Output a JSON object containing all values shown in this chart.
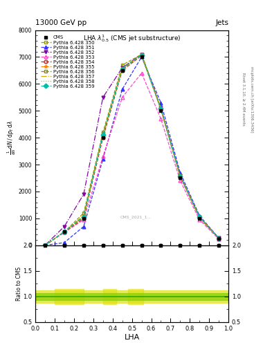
{
  "title_top": "13000 GeV pp",
  "title_right": "Jets",
  "plot_title": "LHA $\\lambda^1_{0.5}$ (CMS jet substructure)",
  "xlabel": "LHA",
  "ylabel_main": "$\\frac{1}{\\mathrm{d}N} \\frac{\\mathrm{d}N}{\\mathrm{d}p_{\\mathrm{T}} \\mathrm{d}\\lambda}$",
  "ylabel_ratio": "Ratio to CMS",
  "right_label_top": "Rivet 3.1.10, ≥ 2.4M events",
  "right_label_bot": "mcplots.cern.ch [arXiv:1306.3436]",
  "watermark": "CMS_2021_1...",
  "x_bins": [
    0.0,
    0.1,
    0.2,
    0.3,
    0.4,
    0.5,
    0.6,
    0.7,
    0.8,
    0.9,
    1.0
  ],
  "series": [
    {
      "label": "CMS",
      "color": "#000000",
      "marker": "s",
      "linestyle": "None",
      "filled": true,
      "values": [
        0,
        500,
        1000,
        4000,
        6500,
        7000,
        5000,
        2500,
        1000,
        250
      ]
    },
    {
      "label": "Pythia 6.428 350",
      "color": "#999900",
      "marker": "s",
      "linestyle": "--",
      "filled": false,
      "values": [
        0,
        500,
        1200,
        4200,
        6700,
        7100,
        5100,
        2600,
        1050,
        260
      ]
    },
    {
      "label": "Pythia 6.428 351",
      "color": "#3333ff",
      "marker": "^",
      "linestyle": "--",
      "filled": true,
      "values": [
        0,
        100,
        700,
        3200,
        5800,
        7000,
        5300,
        2700,
        1100,
        270
      ]
    },
    {
      "label": "Pythia 6.428 352",
      "color": "#8800aa",
      "marker": "v",
      "linestyle": "-.",
      "filled": true,
      "values": [
        0,
        700,
        1900,
        5500,
        6600,
        7100,
        5100,
        2600,
        1050,
        265
      ]
    },
    {
      "label": "Pythia 6.428 353",
      "color": "#ff44cc",
      "marker": "^",
      "linestyle": "--",
      "filled": false,
      "values": [
        0,
        480,
        950,
        3300,
        5500,
        6400,
        4700,
        2400,
        950,
        230
      ]
    },
    {
      "label": "Pythia 6.428 354",
      "color": "#cc2222",
      "marker": "o",
      "linestyle": "--",
      "filled": false,
      "values": [
        0,
        490,
        1000,
        4000,
        6500,
        7050,
        5050,
        2550,
        1020,
        255
      ]
    },
    {
      "label": "Pythia 6.428 355",
      "color": "#ff8800",
      "marker": "*",
      "linestyle": "--",
      "filled": true,
      "values": [
        0,
        500,
        1050,
        4100,
        6550,
        7080,
        5080,
        2580,
        1040,
        258
      ]
    },
    {
      "label": "Pythia 6.428 356",
      "color": "#888822",
      "marker": "s",
      "linestyle": "--",
      "filled": false,
      "values": [
        0,
        505,
        1100,
        4150,
        6580,
        7090,
        5090,
        2590,
        1045,
        259
      ]
    },
    {
      "label": "Pythia 6.428 357",
      "color": "#ccaa00",
      "marker": null,
      "linestyle": "-.",
      "filled": false,
      "values": [
        0,
        510,
        1080,
        4120,
        6560,
        7070,
        5070,
        2570,
        1042,
        257
      ]
    },
    {
      "label": "Pythia 6.428 358",
      "color": "#aacc00",
      "marker": null,
      "linestyle": ":",
      "filled": false,
      "values": [
        0,
        508,
        1070,
        4110,
        6555,
        7065,
        5065,
        2565,
        1041,
        256
      ]
    },
    {
      "label": "Pythia 6.428 359",
      "color": "#00bbaa",
      "marker": "D",
      "linestyle": "--",
      "filled": true,
      "values": [
        0,
        505,
        1060,
        4105,
        6560,
        7075,
        5075,
        2575,
        1043,
        258
      ]
    }
  ],
  "ratio_band_yellow": "#dddd00",
  "ratio_band_green": "#88cc00",
  "ratio_line_color": "#33aa00",
  "ylim_main": [
    0,
    8000
  ],
  "ylim_ratio": [
    0.5,
    2.0
  ],
  "x_lim": [
    0.0,
    1.0
  ],
  "cms_marker_x": [
    0.05,
    0.15,
    0.25,
    0.35,
    0.45,
    0.55,
    0.65,
    0.75,
    0.85,
    0.95
  ]
}
